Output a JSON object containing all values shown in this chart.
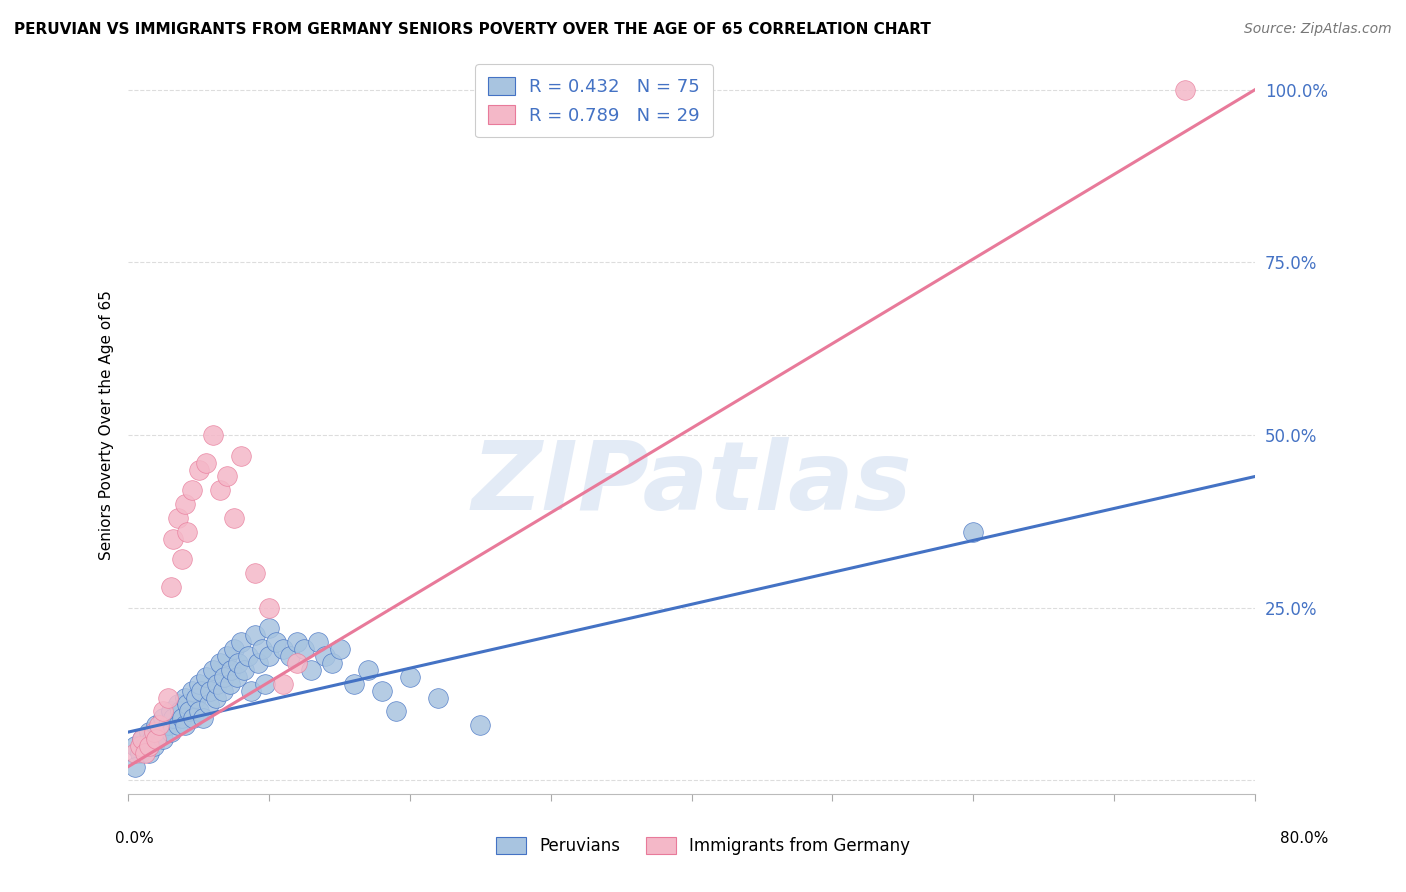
{
  "title": "PERUVIAN VS IMMIGRANTS FROM GERMANY SENIORS POVERTY OVER THE AGE OF 65 CORRELATION CHART",
  "source": "Source: ZipAtlas.com",
  "ylabel": "Seniors Poverty Over the Age of 65",
  "xlim": [
    0.0,
    0.8
  ],
  "ylim": [
    -0.02,
    1.05
  ],
  "watermark": "ZIPatlas",
  "blue_R": 0.432,
  "blue_N": 75,
  "pink_R": 0.789,
  "pink_N": 29,
  "blue_color": "#a8c4e0",
  "blue_line_color": "#4472c4",
  "pink_color": "#f4b8c8",
  "pink_line_color": "#e87a9a",
  "blue_legend_label": "Peruvians",
  "pink_legend_label": "Immigrants from Germany",
  "title_fontsize": 11,
  "source_fontsize": 10,
  "blue_scatter_x": [
    0.005,
    0.008,
    0.01,
    0.012,
    0.015,
    0.015,
    0.017,
    0.018,
    0.02,
    0.022,
    0.025,
    0.025,
    0.028,
    0.03,
    0.03,
    0.032,
    0.035,
    0.035,
    0.037,
    0.038,
    0.04,
    0.04,
    0.042,
    0.043,
    0.045,
    0.046,
    0.048,
    0.05,
    0.05,
    0.052,
    0.053,
    0.055,
    0.057,
    0.058,
    0.06,
    0.062,
    0.063,
    0.065,
    0.067,
    0.068,
    0.07,
    0.072,
    0.073,
    0.075,
    0.077,
    0.078,
    0.08,
    0.082,
    0.085,
    0.087,
    0.09,
    0.092,
    0.095,
    0.097,
    0.1,
    0.1,
    0.105,
    0.11,
    0.115,
    0.12,
    0.125,
    0.13,
    0.135,
    0.14,
    0.145,
    0.15,
    0.16,
    0.17,
    0.18,
    0.19,
    0.2,
    0.22,
    0.25,
    0.6,
    0.005
  ],
  "blue_scatter_y": [
    0.05,
    0.04,
    0.06,
    0.05,
    0.07,
    0.04,
    0.06,
    0.05,
    0.08,
    0.07,
    0.09,
    0.06,
    0.08,
    0.1,
    0.07,
    0.09,
    0.11,
    0.08,
    0.1,
    0.09,
    0.12,
    0.08,
    0.11,
    0.1,
    0.13,
    0.09,
    0.12,
    0.14,
    0.1,
    0.13,
    0.09,
    0.15,
    0.11,
    0.13,
    0.16,
    0.12,
    0.14,
    0.17,
    0.13,
    0.15,
    0.18,
    0.14,
    0.16,
    0.19,
    0.15,
    0.17,
    0.2,
    0.16,
    0.18,
    0.13,
    0.21,
    0.17,
    0.19,
    0.14,
    0.22,
    0.18,
    0.2,
    0.19,
    0.18,
    0.2,
    0.19,
    0.16,
    0.2,
    0.18,
    0.17,
    0.19,
    0.14,
    0.16,
    0.13,
    0.1,
    0.15,
    0.12,
    0.08,
    0.36,
    0.02
  ],
  "pink_scatter_x": [
    0.005,
    0.008,
    0.01,
    0.012,
    0.015,
    0.018,
    0.02,
    0.022,
    0.025,
    0.028,
    0.03,
    0.032,
    0.035,
    0.038,
    0.04,
    0.042,
    0.045,
    0.05,
    0.055,
    0.06,
    0.065,
    0.07,
    0.075,
    0.08,
    0.09,
    0.1,
    0.11,
    0.12,
    0.75
  ],
  "pink_scatter_y": [
    0.04,
    0.05,
    0.06,
    0.04,
    0.05,
    0.07,
    0.06,
    0.08,
    0.1,
    0.12,
    0.28,
    0.35,
    0.38,
    0.32,
    0.4,
    0.36,
    0.42,
    0.45,
    0.46,
    0.5,
    0.42,
    0.44,
    0.38,
    0.47,
    0.3,
    0.25,
    0.14,
    0.17,
    1.0
  ],
  "blue_line_x0": 0.0,
  "blue_line_x1": 0.8,
  "blue_line_y0": 0.07,
  "blue_line_y1": 0.44,
  "pink_line_x0": 0.0,
  "pink_line_x1": 0.8,
  "pink_line_y0": 0.02,
  "pink_line_y1": 1.0,
  "yticks": [
    0.0,
    0.25,
    0.5,
    0.75,
    1.0
  ],
  "ytick_labels": [
    "",
    "25.0%",
    "50.0%",
    "75.0%",
    "100.0%"
  ]
}
